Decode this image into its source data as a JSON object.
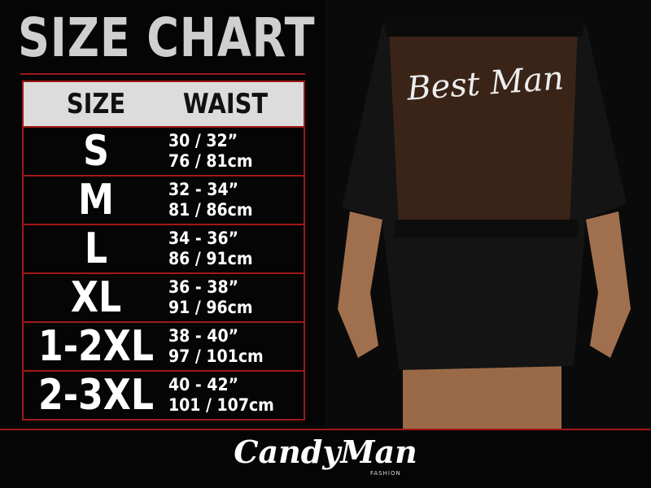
{
  "title": "SIZE CHART",
  "table": {
    "header": [
      "SIZE",
      "WAIST"
    ],
    "rows": [
      [
        "S",
        "30 / 32”",
        "76 / 81cm"
      ],
      [
        "M",
        "32 - 34”",
        "81 / 86cm"
      ],
      [
        "L",
        "34 - 36”",
        "86 / 91cm"
      ],
      [
        "XL",
        "36 - 38”",
        "91 / 96cm"
      ],
      [
        "1-2XL",
        "38 - 40”",
        "97 / 101cm"
      ],
      [
        "2-3XL",
        "40 - 42”",
        "101 / 107cm"
      ]
    ]
  },
  "photo": {
    "print": "Best Man"
  },
  "logo": {
    "name": "CandyMan",
    "tagline": "FASHION"
  }
}
